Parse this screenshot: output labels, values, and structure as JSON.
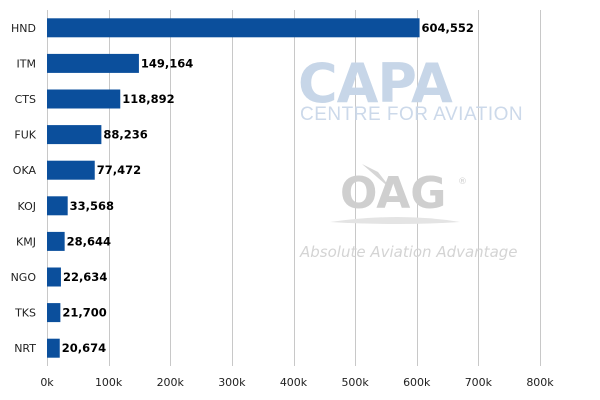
{
  "colors": {
    "bar": "#0b4f9c",
    "grid": "#c8c8c8",
    "text": "#222222"
  },
  "watermarks": {
    "capa_title": "CAPA",
    "capa_subtitle": "CENTRE FOR AVIATION",
    "oag_title": "OAG",
    "oag_mark": "®",
    "oag_subtitle": "Absolute Aviation Advantage"
  },
  "chart_data": {
    "type": "bar",
    "orientation": "horizontal",
    "categories": [
      "HND",
      "ITM",
      "CTS",
      "FUK",
      "OKA",
      "KOJ",
      "KMJ",
      "NGO",
      "TKS",
      "NRT"
    ],
    "values": [
      604552,
      149164,
      118892,
      88236,
      77472,
      33568,
      28644,
      22634,
      21700,
      20674
    ],
    "value_labels": [
      "604,552",
      "149,164",
      "118,892",
      "88,236",
      "77,472",
      "33,568",
      "28,644",
      "22,634",
      "21,700",
      "20,674"
    ],
    "xlim": [
      0,
      800000
    ],
    "x_ticks": [
      0,
      100000,
      200000,
      300000,
      400000,
      500000,
      600000,
      700000,
      800000
    ],
    "x_tick_labels": [
      "0k",
      "100k",
      "200k",
      "300k",
      "400k",
      "500k",
      "600k",
      "700k",
      "800k"
    ],
    "grid": true,
    "legend": "none",
    "title": "",
    "xlabel": "",
    "ylabel": ""
  }
}
